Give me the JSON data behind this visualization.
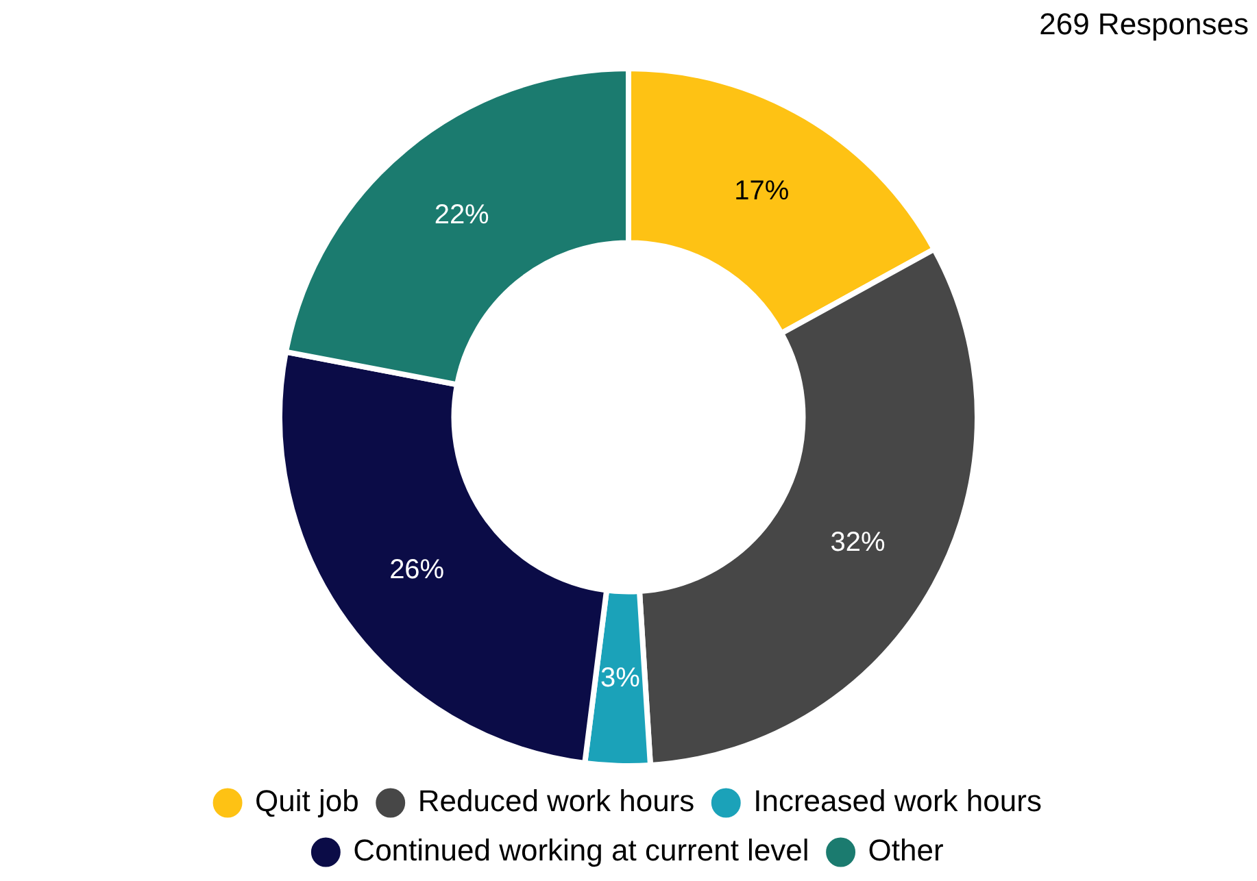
{
  "chart_data": {
    "type": "donut",
    "annotations": [
      "269 Responses"
    ],
    "categories": [
      "Quit job",
      "Reduced work hours",
      "Increased work hours",
      "Continued working at current level",
      "Other"
    ],
    "values": [
      17,
      32,
      3,
      26,
      22
    ],
    "value_labels": [
      "17%",
      "32%",
      "3%",
      "26%",
      "22%"
    ],
    "colors": [
      "#fec214",
      "#474747",
      "#1ba2b9",
      "#0b0c47",
      "#1b7b6f"
    ],
    "legend": "bottom"
  }
}
